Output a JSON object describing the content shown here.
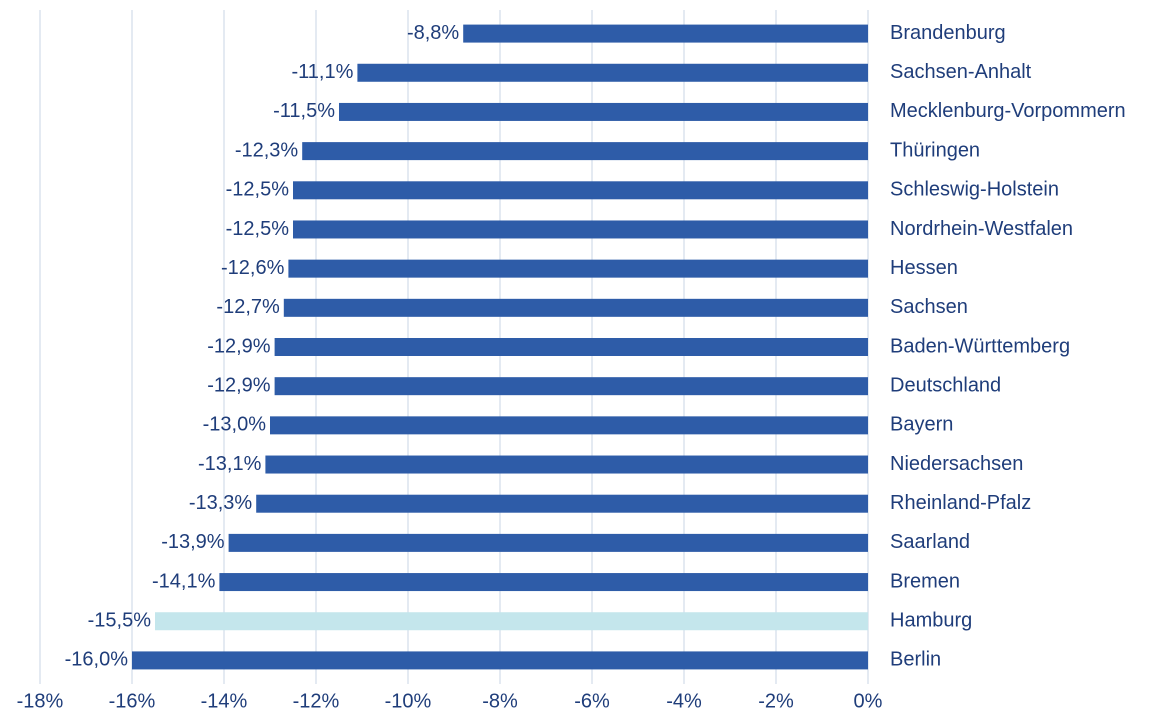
{
  "chart_data": {
    "type": "bar",
    "orientation": "horizontal",
    "categories": [
      "Brandenburg",
      "Sachsen-Anhalt",
      "Mecklenburg-Vorpommern",
      "Thüringen",
      "Schleswig-Holstein",
      "Nordrhein-Westfalen",
      "Hessen",
      "Sachsen",
      "Baden-Württemberg",
      "Deutschland",
      "Bayern",
      "Niedersachsen",
      "Rheinland-Pfalz",
      "Saarland",
      "Bremen",
      "Hamburg",
      "Berlin"
    ],
    "values": [
      -8.8,
      -11.1,
      -11.5,
      -12.3,
      -12.5,
      -12.5,
      -12.6,
      -12.7,
      -12.9,
      -12.9,
      -13.0,
      -13.1,
      -13.3,
      -13.9,
      -14.1,
      -15.5,
      -16.0
    ],
    "value_labels": [
      "-8,8%",
      "-11,1%",
      "-11,5%",
      "-12,3%",
      "-12,5%",
      "-12,5%",
      "-12,6%",
      "-12,7%",
      "-12,9%",
      "-12,9%",
      "-13,0%",
      "-13,1%",
      "-13,3%",
      "-13,9%",
      "-14,1%",
      "-15,5%",
      "-16,0%"
    ],
    "colors": [
      "#2e5ca8",
      "#2e5ca8",
      "#2e5ca8",
      "#2e5ca8",
      "#2e5ca8",
      "#2e5ca8",
      "#2e5ca8",
      "#2e5ca8",
      "#2e5ca8",
      "#2e5ca8",
      "#2e5ca8",
      "#2e5ca8",
      "#2e5ca8",
      "#2e5ca8",
      "#2e5ca8",
      "#c4e6ec",
      "#2e5ca8"
    ],
    "xlim": [
      -18,
      0
    ],
    "xticks": [
      {
        "value": -18,
        "label": "-18%"
      },
      {
        "value": -16,
        "label": "-16%"
      },
      {
        "value": -14,
        "label": "-14%"
      },
      {
        "value": -12,
        "label": "-12%"
      },
      {
        "value": -10,
        "label": "-10%"
      },
      {
        "value": -8,
        "label": "-8%"
      },
      {
        "value": -6,
        "label": "-6%"
      },
      {
        "value": -4,
        "label": "-4%"
      },
      {
        "value": -2,
        "label": "-2%"
      },
      {
        "value": 0,
        "label": "0%"
      }
    ],
    "grid": true
  }
}
